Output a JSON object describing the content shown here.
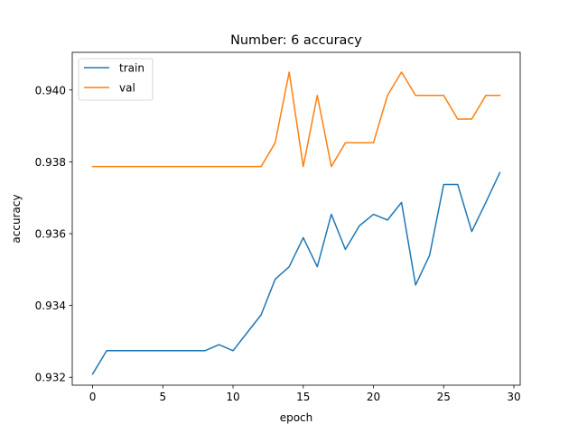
{
  "chart_data": {
    "type": "line",
    "title": "Number: 6 accuracy",
    "xlabel": "epoch",
    "ylabel": "accuracy",
    "xlim": [
      -1.45,
      30.45
    ],
    "ylim": [
      0.93178,
      0.94105
    ],
    "xticks": [
      0,
      5,
      10,
      15,
      20,
      25,
      30
    ],
    "yticks": [
      0.932,
      0.934,
      0.936,
      0.938,
      0.94
    ],
    "yticks_labels": [
      "0.932",
      "0.934",
      "0.936",
      "0.938",
      "0.940"
    ],
    "grid": false,
    "legend": "upper-left",
    "x": [
      0,
      1,
      2,
      3,
      4,
      5,
      6,
      7,
      8,
      9,
      10,
      11,
      12,
      13,
      14,
      15,
      16,
      17,
      18,
      19,
      20,
      21,
      22,
      23,
      24,
      25,
      26,
      27,
      28,
      29
    ],
    "series": [
      {
        "name": "train",
        "color": "#1f77b4",
        "values": [
          0.93209,
          0.93274,
          0.93274,
          0.93274,
          0.93274,
          0.93274,
          0.93274,
          0.93274,
          0.93274,
          0.93291,
          0.93274,
          0.93324,
          0.93374,
          0.93473,
          0.93508,
          0.93589,
          0.93508,
          0.93654,
          0.93556,
          0.93622,
          0.93654,
          0.93638,
          0.93687,
          0.93457,
          0.9354,
          0.93737,
          0.93737,
          0.93606,
          0.93687,
          0.9377
        ]
      },
      {
        "name": "val",
        "color": "#ff7f0e",
        "values": [
          0.93787,
          0.93787,
          0.93787,
          0.93787,
          0.93787,
          0.93787,
          0.93787,
          0.93787,
          0.93787,
          0.93787,
          0.93787,
          0.93787,
          0.93787,
          0.93853,
          0.9405,
          0.93787,
          0.93985,
          0.93787,
          0.93853,
          0.93853,
          0.93853,
          0.93985,
          0.9405,
          0.93985,
          0.93985,
          0.93985,
          0.93919,
          0.93919,
          0.93985,
          0.93985
        ]
      }
    ]
  }
}
